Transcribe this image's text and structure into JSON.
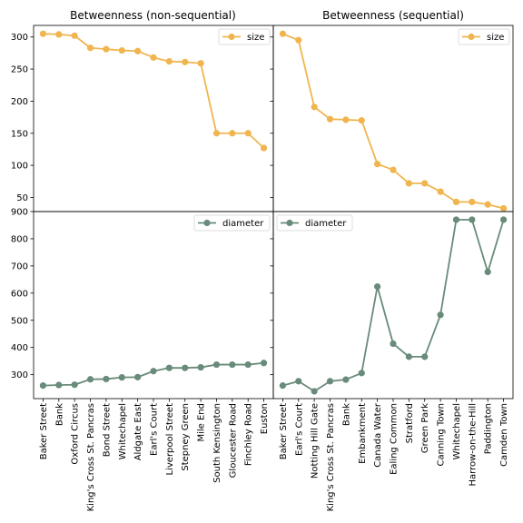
{
  "chart_data": [
    {
      "type": "line",
      "title": "Betweenness (non-sequential)",
      "categories": [
        "Baker Street",
        "Bank",
        "Oxford Circus",
        "King's Cross St. Pancras",
        "Bond Street",
        "Whitechapel",
        "Aldgate East",
        "Earl's Court",
        "Liverpool Street",
        "Stepney Green",
        "Mile End",
        "South Kensington",
        "Gloucester Road",
        "Finchley Road",
        "Euston"
      ],
      "series": [
        {
          "name": "size",
          "color": "#f0b54f",
          "values": [
            305,
            304,
            302,
            283,
            281,
            279,
            278,
            268,
            262,
            261,
            259,
            150,
            150,
            150,
            127
          ]
        },
        {
          "name": "diameter",
          "color": "#698b7a",
          "values": [
            260,
            262,
            263,
            283,
            284,
            290,
            291,
            313,
            325,
            325,
            327,
            337,
            337,
            337,
            343
          ]
        }
      ],
      "panels": {
        "size": {
          "ylim": [
            28,
            318
          ],
          "yticks": [
            50,
            100,
            150,
            200,
            250,
            300
          ]
        },
        "diameter": {
          "ylim": [
            212,
            900
          ],
          "yticks": [
            300,
            400,
            500,
            600,
            700,
            800,
            900
          ]
        }
      },
      "legend_placement": "upper-right",
      "grid": false
    },
    {
      "type": "line",
      "title": "Betweenness (sequential)",
      "categories": [
        "Baker Street",
        "Earl's Court",
        "Notting Hill Gate",
        "King's Cross St. Pancras",
        "Bank",
        "Embankment",
        "Canada Water",
        "Ealing Common",
        "Stratford",
        "Green Park",
        "Canning Town",
        "Whitechapel",
        "Harrow-on-the-Hill",
        "Paddington",
        "Camden Town"
      ],
      "series": [
        {
          "name": "size",
          "color": "#f0b54f",
          "values": [
            305,
            295,
            191,
            172,
            171,
            170,
            102,
            93,
            72,
            72,
            59,
            43,
            43,
            39,
            33
          ]
        },
        {
          "name": "diameter",
          "color": "#698b7a",
          "values": [
            260,
            276,
            239,
            276,
            282,
            306,
            624,
            414,
            366,
            366,
            520,
            870,
            870,
            678,
            870
          ]
        }
      ],
      "panels": {
        "size": {
          "ylim": [
            28,
            318
          ],
          "yticks": [
            50,
            100,
            150,
            200,
            250,
            300
          ]
        },
        "diameter": {
          "ylim": [
            212,
            900
          ],
          "yticks": [
            300,
            400,
            500,
            600,
            700,
            800,
            900
          ]
        }
      },
      "legend_placement": "upper-right",
      "grid": false
    }
  ]
}
